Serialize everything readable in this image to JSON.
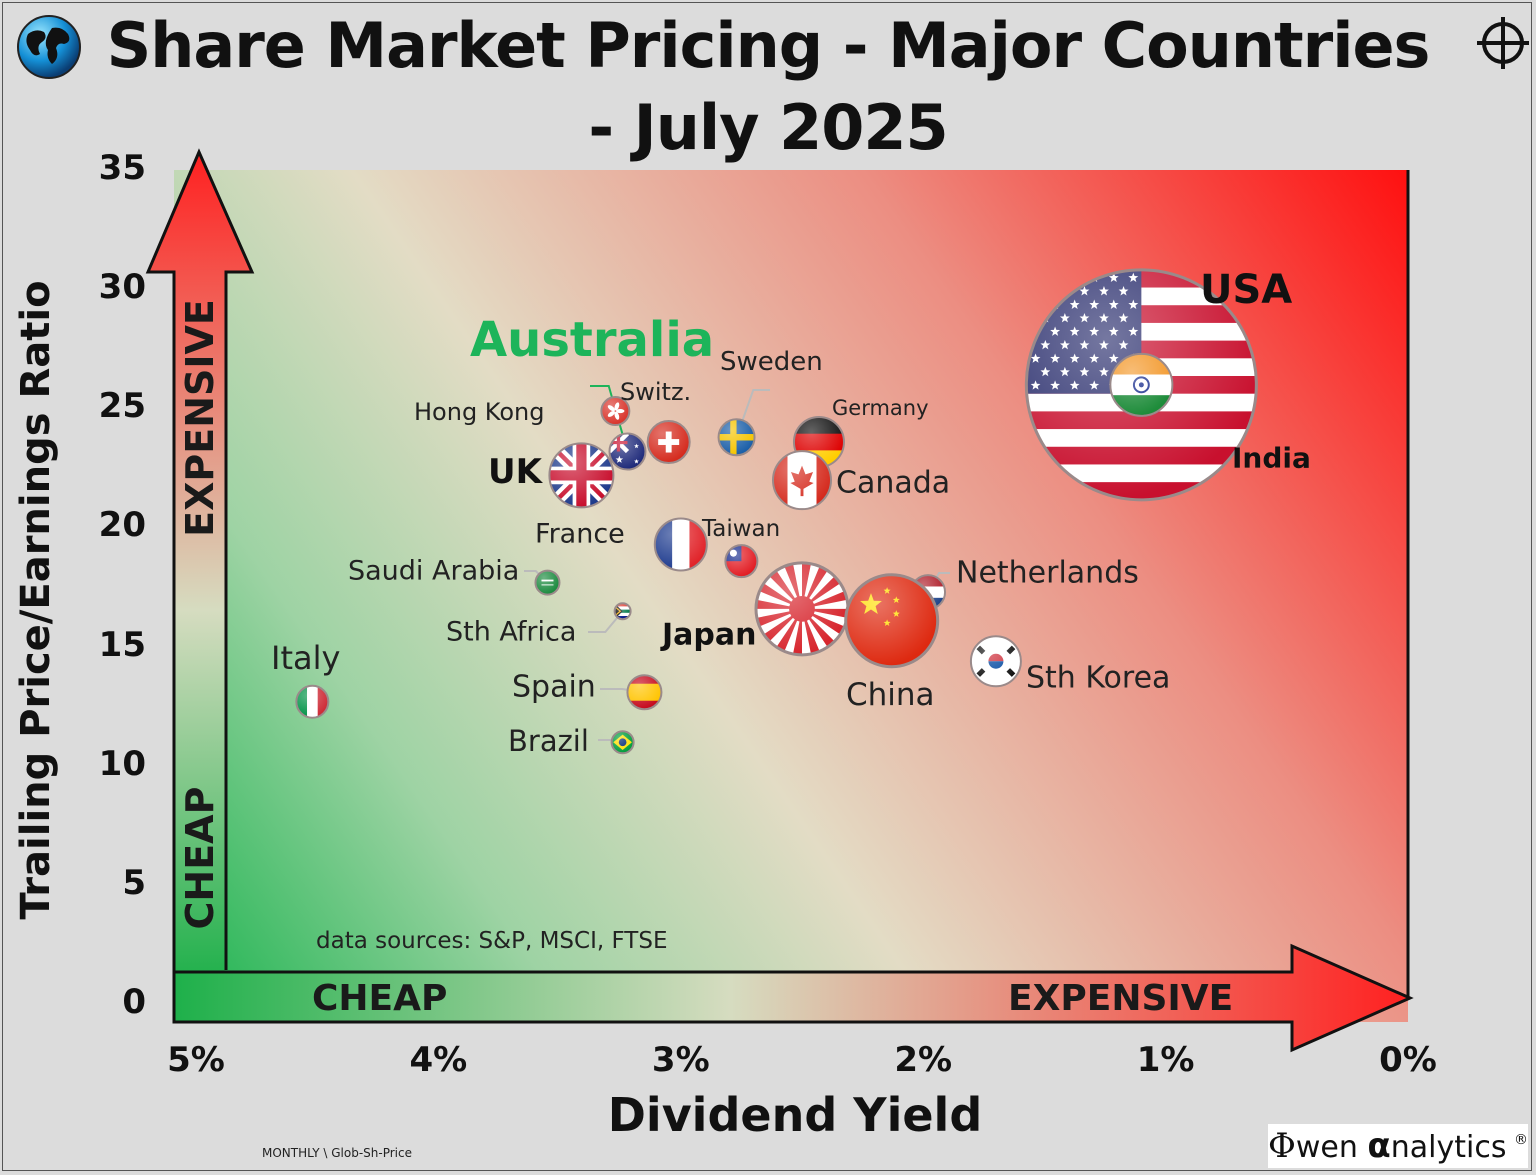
{
  "title_line1": "Share Market Pricing - Major Countries",
  "title_line2": "- July 2025",
  "icons": {
    "globe": "globe-icon",
    "crosshair": "crosshair-logo-icon"
  },
  "data_sources": "data sources: S&P, MSCI, FTSE",
  "footer_code": "MONTHLY \\ Glob-Sh-Price",
  "logo": {
    "mark": "Φ",
    "part1": "wen ",
    "part2": "α",
    "part3": "nalytics",
    "reg": "®"
  },
  "arrows": {
    "y_cheap": "CHEAP",
    "y_expensive": "EXPENSIVE",
    "x_cheap": "CHEAP",
    "x_expensive": "EXPENSIVE"
  },
  "colors": {
    "cheap": "#19b24c",
    "expensive": "#ff1a1a",
    "neutral": "#e2dcc6",
    "australia_label": "#1db45a"
  },
  "chart_data": {
    "type": "scatter",
    "xlabel": "Dividend Yield",
    "ylabel": "Trailing Price/Earnings Ratio",
    "xlim": [
      5,
      0
    ],
    "ylim": [
      0,
      35
    ],
    "x_reversed": true,
    "x_ticks": [
      "5%",
      "4%",
      "3%",
      "2%",
      "1%",
      "0%"
    ],
    "y_ticks": [
      "0",
      "5",
      "10",
      "15",
      "20",
      "25",
      "30",
      "35"
    ],
    "points": [
      {
        "country": "USA",
        "x": 1.1,
        "y": 25.9,
        "size": 115,
        "flag": "us-flag"
      },
      {
        "country": "India",
        "x": 1.1,
        "y": 25.9,
        "size": 31,
        "flag": "india-flag"
      },
      {
        "country": "Australia",
        "x": 3.22,
        "y": 23.1,
        "size": 18,
        "flag": "australia-flag"
      },
      {
        "country": "Hong Kong",
        "x": 3.27,
        "y": 24.8,
        "size": 14,
        "flag": "hongkong-flag"
      },
      {
        "country": "Switz.",
        "x": 3.05,
        "y": 23.5,
        "size": 21,
        "flag": "swiss-flag"
      },
      {
        "country": "Sweden",
        "x": 2.77,
        "y": 23.7,
        "size": 18,
        "flag": "sweden-flag"
      },
      {
        "country": "Germany",
        "x": 2.43,
        "y": 23.5,
        "size": 25,
        "flag": "germany-flag"
      },
      {
        "country": "UK",
        "x": 3.41,
        "y": 22.1,
        "size": 32,
        "flag": "uk-flag"
      },
      {
        "country": "Canada",
        "x": 2.5,
        "y": 21.9,
        "size": 29,
        "flag": "canada-flag"
      },
      {
        "country": "France",
        "x": 3.0,
        "y": 19.2,
        "size": 26,
        "flag": "france-flag"
      },
      {
        "country": "Taiwan",
        "x": 2.75,
        "y": 18.5,
        "size": 16,
        "flag": "taiwan-flag"
      },
      {
        "country": "Saudi Arabia",
        "x": 3.55,
        "y": 17.6,
        "size": 12,
        "flag": "saudi-flag"
      },
      {
        "country": "Netherlands",
        "x": 1.98,
        "y": 17.2,
        "size": 17,
        "flag": "netherlands-flag"
      },
      {
        "country": "Sth Africa",
        "x": 3.24,
        "y": 16.4,
        "size": 8,
        "flag": "southafrica-flag"
      },
      {
        "country": "Japan",
        "x": 2.5,
        "y": 16.5,
        "size": 46,
        "flag": "japan-flag"
      },
      {
        "country": "China",
        "x": 2.13,
        "y": 16.0,
        "size": 46,
        "flag": "china-flag"
      },
      {
        "country": "Sth Korea",
        "x": 1.7,
        "y": 14.3,
        "size": 25,
        "flag": "korea-flag"
      },
      {
        "country": "Italy",
        "x": 4.52,
        "y": 12.6,
        "size": 16,
        "flag": "italy-flag"
      },
      {
        "country": "Spain",
        "x": 3.15,
        "y": 13.0,
        "size": 17,
        "flag": "spain-flag"
      },
      {
        "country": "Brazil",
        "x": 3.24,
        "y": 10.9,
        "size": 11,
        "flag": "brazil-flag"
      }
    ]
  }
}
